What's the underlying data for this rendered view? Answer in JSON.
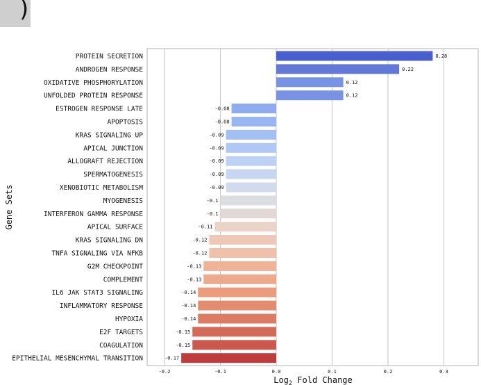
{
  "chart_data": {
    "type": "bar",
    "orientation": "horizontal",
    "xlabel": "Log2 Fold Change",
    "xlabel_base": "Log",
    "xlabel_sub": "2",
    "xlabel_rest": " Fold Change",
    "ylabel": "Gene Sets",
    "xlim": [
      -0.2,
      0.3
    ],
    "xticks": [
      "-0.2",
      "-0.1",
      "0.0",
      "0.1",
      "0.2",
      "0.3"
    ],
    "grid": "vertical",
    "categories": [
      "PROTEIN SECRETION",
      "ANDROGEN RESPONSE",
      "OXIDATIVE PHOSPHORYLATION",
      "UNFOLDED PROTEIN RESPONSE",
      "ESTROGEN RESPONSE LATE",
      "APOPTOSIS",
      "KRAS SIGNALING UP",
      "APICAL JUNCTION",
      "ALLOGRAFT REJECTION",
      "SPERMATOGENESIS",
      "XENOBIOTIC METABOLISM",
      "MYOGENESIS",
      "INTERFERON GAMMA RESPONSE",
      "APICAL SURFACE",
      "KRAS SIGNALING DN",
      "TNFA SIGNALING VIA NFKB",
      "G2M CHECKPOINT",
      "COMPLEMENT",
      "IL6 JAK STAT3 SIGNALING",
      "INFLAMMATORY RESPONSE",
      "HYPOXIA",
      "E2F TARGETS",
      "COAGULATION",
      "EPITHELIAL MESENCHYMAL TRANSITION"
    ],
    "values": [
      0.28,
      0.22,
      0.12,
      0.12,
      -0.08,
      -0.08,
      -0.09,
      -0.09,
      -0.09,
      -0.09,
      -0.09,
      -0.1,
      -0.1,
      -0.11,
      -0.12,
      -0.12,
      -0.13,
      -0.13,
      -0.14,
      -0.14,
      -0.14,
      -0.15,
      -0.15,
      -0.17
    ],
    "value_labels": [
      "0.28",
      "0.22",
      "0.12",
      "0.12",
      "-0.08",
      "-0.08",
      "-0.09",
      "-0.09",
      "-0.09",
      "-0.09",
      "-0.09",
      "-0.1",
      "-0.1",
      "-0.11",
      "-0.12",
      "-0.12",
      "-0.13",
      "-0.13",
      "-0.14",
      "-0.14",
      "-0.14",
      "-0.15",
      "-0.15",
      "-0.17"
    ],
    "colors": [
      "#4a5fcf",
      "#6279d8",
      "#7893e3",
      "#7893e3",
      "#8eacef",
      "#98b6f2",
      "#a3c0f5",
      "#afc8f5",
      "#bcd1f4",
      "#c7d6f1",
      "#d2dbec",
      "#dcdde1",
      "#e2d9d6",
      "#ead3c7",
      "#eec8b6",
      "#f0c0a8",
      "#efb398",
      "#eea98b",
      "#eb9c7d",
      "#e48c70",
      "#dd7c64",
      "#d46a58",
      "#cc584d",
      "#bf3c3e"
    ]
  }
}
